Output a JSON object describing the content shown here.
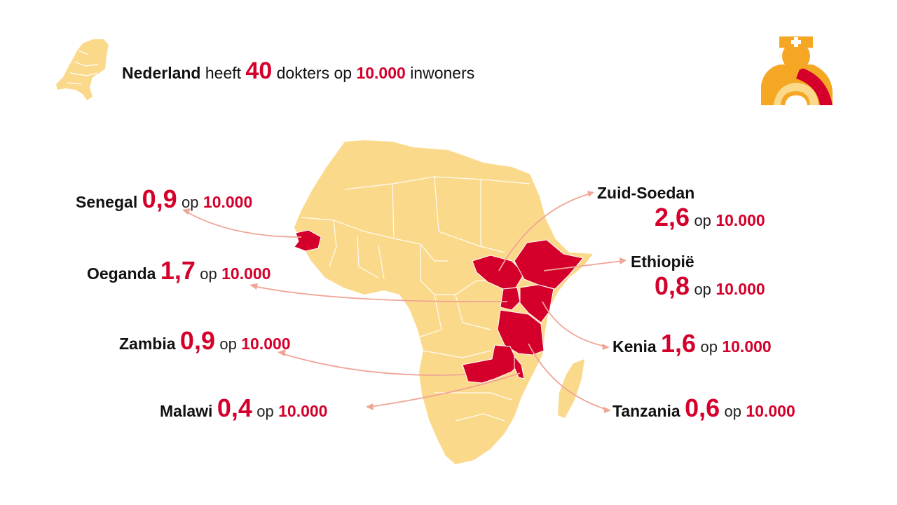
{
  "headline": {
    "country": "Nederland",
    "verb": "heeft",
    "value": "40",
    "middle": "dokters op",
    "base": "10.000",
    "tail": "inwoners"
  },
  "op_word": "op",
  "base_value": "10.000",
  "countries": [
    {
      "id": "senegal",
      "name": "Senegal",
      "doctors_per_10000": "0,9"
    },
    {
      "id": "oeganda",
      "name": "Oeganda",
      "doctors_per_10000": "1,7"
    },
    {
      "id": "zambia",
      "name": "Zambia",
      "doctors_per_10000": "0,9"
    },
    {
      "id": "malawi",
      "name": "Malawi",
      "doctors_per_10000": "0,4"
    },
    {
      "id": "zuid-soedan",
      "name": "Zuid-Soedan",
      "doctors_per_10000": "2,6"
    },
    {
      "id": "ethiopie",
      "name": "Ethiopië",
      "doctors_per_10000": "0,8"
    },
    {
      "id": "kenia",
      "name": "Kenia",
      "doctors_per_10000": "1,6"
    },
    {
      "id": "tanzania",
      "name": "Tanzania",
      "doctors_per_10000": "0,6"
    }
  ],
  "colors": {
    "land": "#fbd98b",
    "highlight": "#d4002b",
    "arrow": "#f0a596",
    "icon_orange": "#f5a623",
    "icon_red": "#d4002b",
    "icon_light": "#fbd98b"
  },
  "icons": [
    "netherlands-map-icon",
    "doctor-nurse-icon"
  ]
}
